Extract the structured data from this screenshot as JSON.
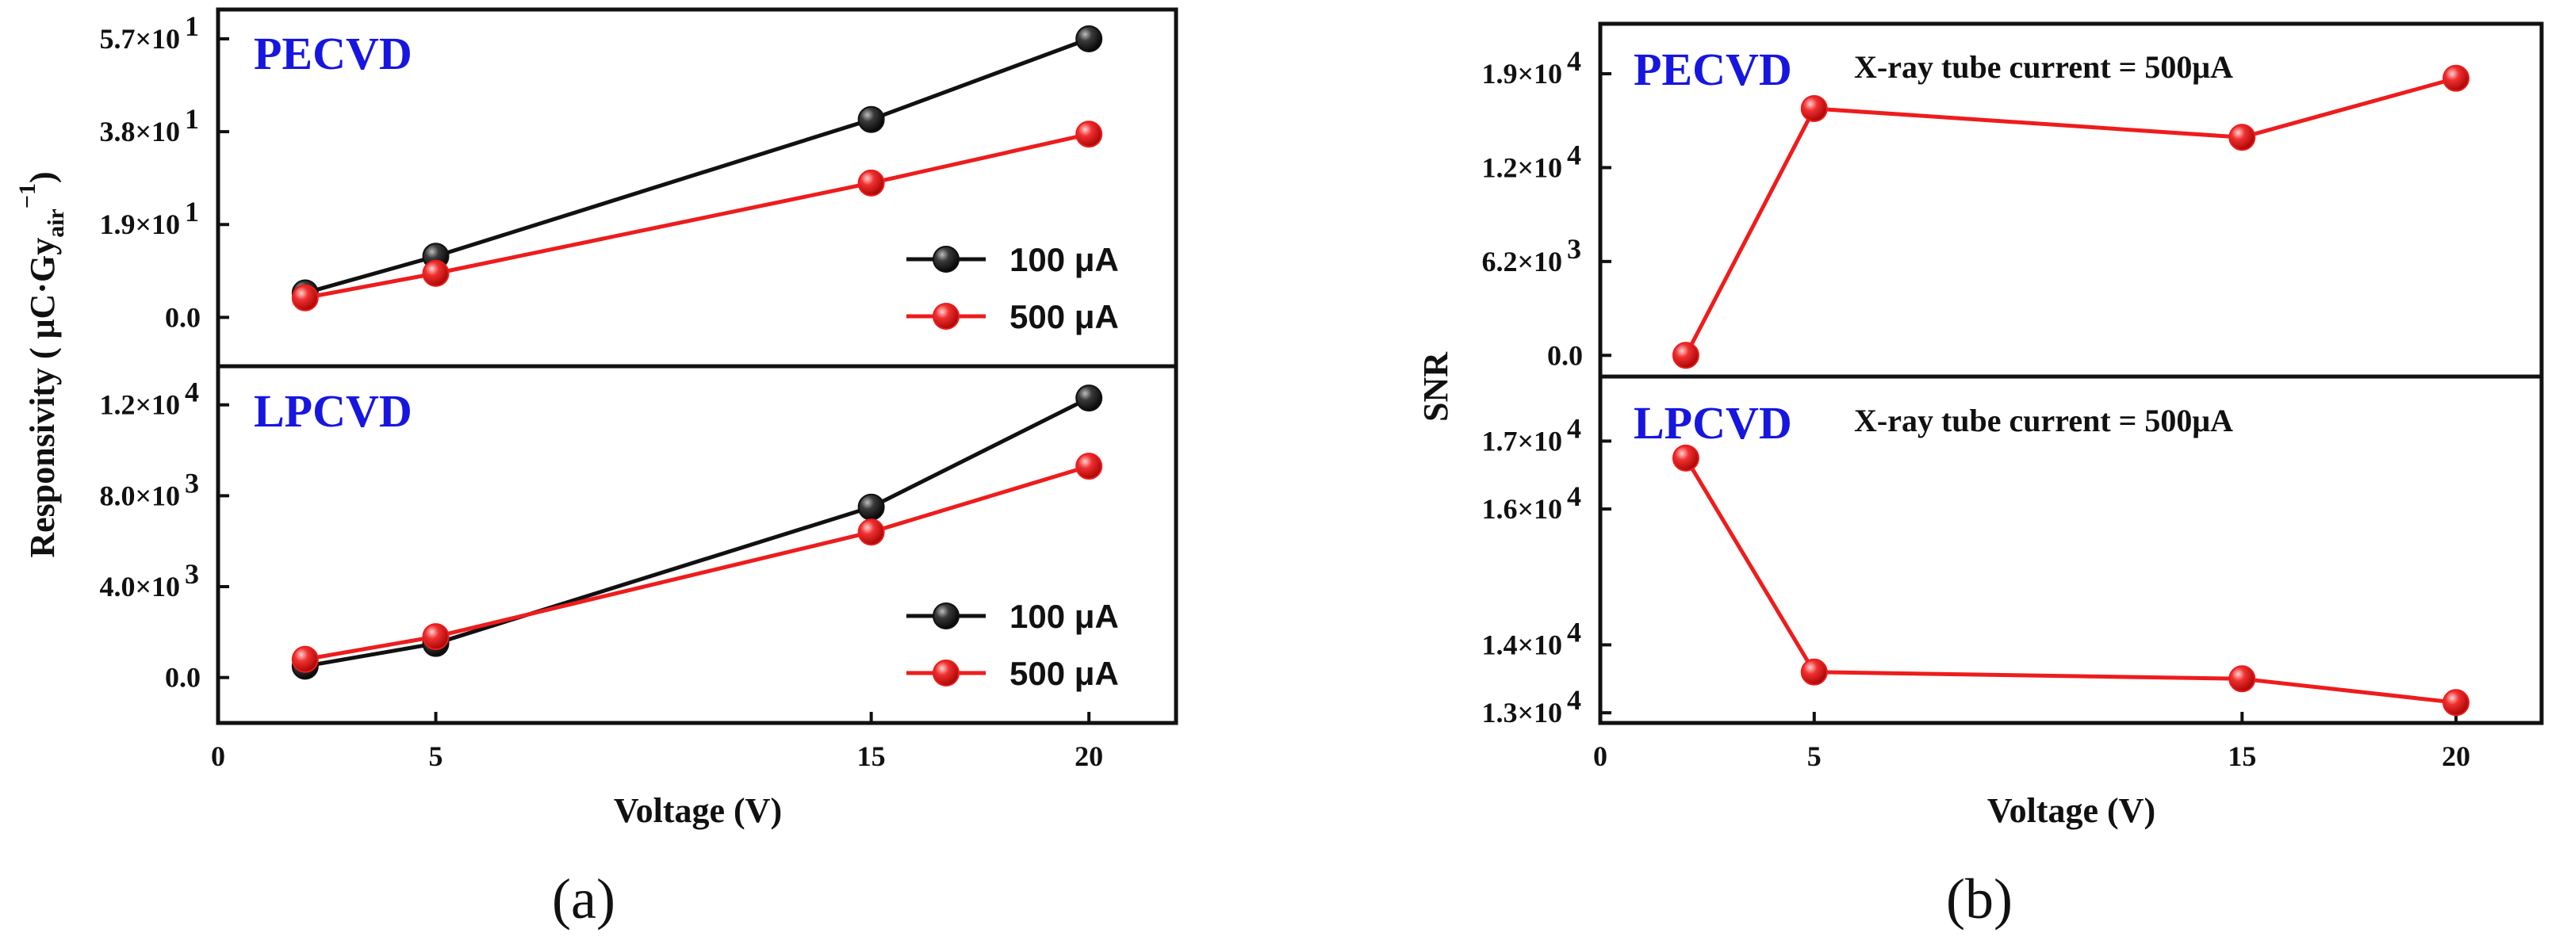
{
  "colors": {
    "black_series": "#111111",
    "red_series": "#ee1c1c",
    "panel_title": "#1616e0"
  },
  "chart_data": [
    {
      "id": "a_pecvd",
      "type": "line",
      "panel_title": "PECVD",
      "caption": "(a)",
      "x": [
        2,
        5,
        15,
        20
      ],
      "xlim": [
        0,
        22
      ],
      "xticks": [
        "0",
        "5",
        "15",
        "20"
      ],
      "xlabel": "Voltage (V)",
      "ylabel": "Responsivity ( μC·Gyair−1)",
      "ylabel_parts": {
        "main": "Responsivity ( μC·Gy",
        "sub": "air",
        "sup": "−1",
        "end": ")"
      },
      "ylim": [
        -10,
        63
      ],
      "yticks": [
        {
          "v": 0,
          "label": "0.0"
        },
        {
          "v": 19,
          "label": "1.9×10"
        },
        {
          "v": 38,
          "label": "3.8×10"
        },
        {
          "v": 57,
          "label": "5.7×10"
        }
      ],
      "ytick_exp": "1",
      "series": [
        {
          "name": "100 μA",
          "color": "#111111",
          "values": [
            5,
            12.5,
            40.5,
            57
          ]
        },
        {
          "name": "500 μA",
          "color": "#ee1c1c",
          "values": [
            4,
            9,
            27.5,
            37.5
          ]
        }
      ],
      "legend": "lower-right"
    },
    {
      "id": "a_lpcvd",
      "type": "line",
      "panel_title": "LPCVD",
      "x": [
        2,
        5,
        15,
        20
      ],
      "xlim": [
        0,
        22
      ],
      "ylim": [
        -2000,
        13700
      ],
      "yticks": [
        {
          "v": 0,
          "label": "0.0"
        },
        {
          "v": 4000,
          "label": "4.0×10"
        },
        {
          "v": 8000,
          "label": "8.0×10"
        },
        {
          "v": 12000,
          "label": "1.2×10"
        }
      ],
      "ytick_exp": "3",
      "ytick_exp_top": "4",
      "series": [
        {
          "name": "100 μA",
          "color": "#111111",
          "values": [
            500,
            1500,
            7500,
            12300
          ]
        },
        {
          "name": "500 μA",
          "color": "#ee1c1c",
          "values": [
            800,
            1800,
            6400,
            9300
          ]
        }
      ],
      "legend": "lower-right"
    },
    {
      "id": "b_pecvd",
      "type": "line",
      "panel_title": "PECVD",
      "caption": "(b)",
      "note": "X-ray tube current = 500μA",
      "x": [
        2,
        5,
        15,
        20
      ],
      "xlim": [
        0,
        22
      ],
      "xticks": [
        "0",
        "5",
        "15",
        "20"
      ],
      "xlabel": "Voltage (V)",
      "ylabel": "SNR",
      "ylim": [
        -1400,
        21900
      ],
      "yticks": [
        {
          "v": 0,
          "label": "0.0"
        },
        {
          "v": 6200,
          "label": "6.2×10"
        },
        {
          "v": 12400,
          "label": "1.2×10"
        },
        {
          "v": 18600,
          "label": "1.9×10"
        }
      ],
      "ytick_exps": [
        "",
        "3",
        "4",
        "4"
      ],
      "series": [
        {
          "name": "500 μA",
          "color": "#ee1c1c",
          "values": [
            0,
            16300,
            14400,
            18300
          ]
        }
      ]
    },
    {
      "id": "b_lpcvd",
      "type": "line",
      "panel_title": "LPCVD",
      "note": "X-ray tube current = 500μA",
      "x": [
        2,
        5,
        15,
        20
      ],
      "xlim": [
        0,
        22
      ],
      "ylim": [
        12850,
        17950
      ],
      "yticks": [
        {
          "v": 13000,
          "label": "1.3×10"
        },
        {
          "v": 14000,
          "label": "1.4×10"
        },
        {
          "v": 16000,
          "label": "1.6×10"
        },
        {
          "v": 17000,
          "label": "1.7×10"
        }
      ],
      "ytick_exp": "4",
      "series": [
        {
          "name": "500 μA",
          "color": "#ee1c1c",
          "values": [
            16750,
            13600,
            13500,
            13150
          ]
        }
      ]
    }
  ]
}
